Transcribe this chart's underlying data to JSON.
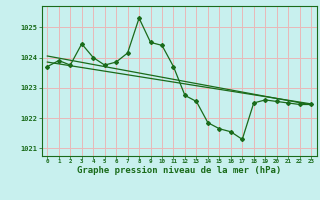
{
  "title": "Graphe pression niveau de la mer (hPa)",
  "background_color": "#c8f0ee",
  "grid_color": "#e8b8b8",
  "line_color": "#1a6b1a",
  "x_hours": [
    0,
    1,
    2,
    3,
    4,
    5,
    6,
    7,
    8,
    9,
    10,
    11,
    12,
    13,
    14,
    15,
    16,
    17,
    18,
    19,
    20,
    21,
    22,
    23
  ],
  "y_main": [
    1023.7,
    1023.9,
    1023.75,
    1024.45,
    1024.0,
    1023.75,
    1023.85,
    1024.15,
    1025.3,
    1024.5,
    1024.4,
    1023.7,
    1022.75,
    1022.55,
    1021.85,
    1021.65,
    1021.55,
    1021.3,
    1022.5,
    1022.6,
    1022.55,
    1022.5,
    1022.45,
    1022.45
  ],
  "y_trend1": [
    1024.05,
    1023.98,
    1023.91,
    1023.84,
    1023.77,
    1023.7,
    1023.63,
    1023.56,
    1023.49,
    1023.42,
    1023.35,
    1023.28,
    1023.21,
    1023.14,
    1023.07,
    1023.0,
    1022.93,
    1022.86,
    1022.79,
    1022.72,
    1022.65,
    1022.58,
    1022.51,
    1022.44
  ],
  "y_trend2": [
    1023.85,
    1023.79,
    1023.73,
    1023.67,
    1023.61,
    1023.55,
    1023.49,
    1023.43,
    1023.37,
    1023.31,
    1023.25,
    1023.19,
    1023.13,
    1023.07,
    1023.01,
    1022.95,
    1022.89,
    1022.83,
    1022.77,
    1022.71,
    1022.65,
    1022.59,
    1022.53,
    1022.47
  ],
  "ylim": [
    1020.75,
    1025.7
  ],
  "yticks": [
    1021,
    1022,
    1023,
    1024,
    1025
  ],
  "figsize": [
    3.2,
    2.0
  ],
  "dpi": 100
}
